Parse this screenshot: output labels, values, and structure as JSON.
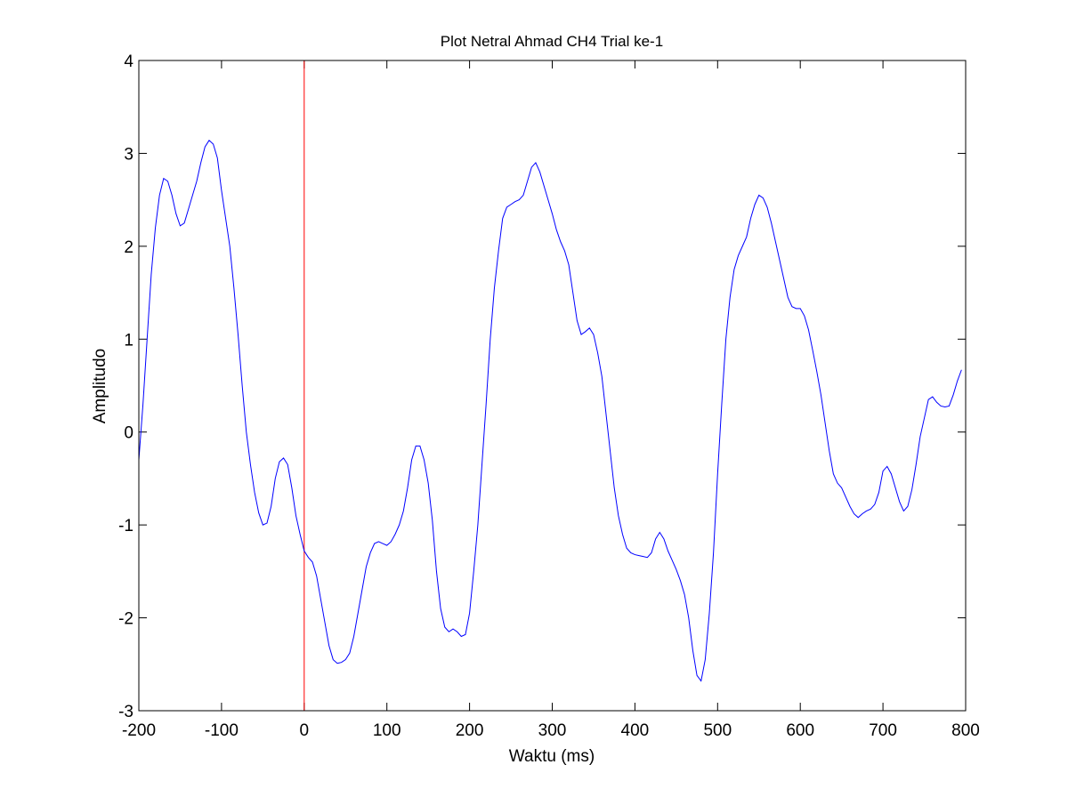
{
  "chart_data": {
    "type": "line",
    "title": "Plot Netral Ahmad CH4 Trial ke-1",
    "xlabel": "Waktu (ms)",
    "ylabel": "Amplitudo",
    "xlim": [
      -200,
      800
    ],
    "ylim": [
      -3,
      4
    ],
    "xticks": [
      -200,
      -100,
      0,
      100,
      200,
      300,
      400,
      500,
      600,
      700,
      800
    ],
    "yticks": [
      -3,
      -2,
      -1,
      0,
      1,
      2,
      3,
      4
    ],
    "grid": false,
    "legend": "none",
    "colors": {
      "signal": "#0000ff",
      "stimulus_marker": "#ff0000",
      "axes": "#000000"
    },
    "stimulus_marker_x": 0,
    "series": [
      {
        "x": [
          -200,
          -195,
          -190,
          -185,
          -180,
          -175,
          -170,
          -165,
          -160,
          -155,
          -150,
          -145,
          -140,
          -135,
          -130,
          -125,
          -120,
          -115,
          -110,
          -105,
          -100,
          -95,
          -90,
          -85,
          -80,
          -75,
          -70,
          -65,
          -60,
          -55,
          -50,
          -45,
          -40,
          -35,
          -30,
          -25,
          -20,
          -15,
          -10,
          -5,
          0,
          5,
          10,
          15,
          20,
          25,
          30,
          35,
          40,
          45,
          50,
          55,
          60,
          65,
          70,
          75,
          80,
          85,
          90,
          95,
          100,
          105,
          110,
          115,
          120,
          125,
          130,
          135,
          140,
          145,
          150,
          155,
          160,
          165,
          170,
          175,
          180,
          185,
          190,
          195,
          200,
          205,
          210,
          215,
          220,
          225,
          230,
          235,
          240,
          245,
          250,
          255,
          260,
          265,
          270,
          275,
          280,
          285,
          290,
          295,
          300,
          305,
          310,
          315,
          320,
          325,
          330,
          335,
          340,
          345,
          350,
          355,
          360,
          365,
          370,
          375,
          380,
          385,
          390,
          395,
          400,
          405,
          410,
          415,
          420,
          425,
          430,
          435,
          440,
          445,
          450,
          455,
          460,
          465,
          470,
          475,
          480,
          485,
          490,
          495,
          500,
          505,
          510,
          515,
          520,
          525,
          530,
          535,
          540,
          545,
          550,
          555,
          560,
          565,
          570,
          575,
          580,
          585,
          590,
          595,
          600,
          605,
          610,
          615,
          620,
          625,
          630,
          635,
          640,
          645,
          650,
          655,
          660,
          665,
          670,
          675,
          680,
          685,
          690,
          695,
          700,
          705,
          710,
          715,
          720,
          725,
          730,
          735,
          740,
          745,
          750,
          755,
          760,
          765,
          770,
          775,
          780,
          785,
          790,
          795
        ],
        "values": [
          -0.3,
          0.3,
          1.0,
          1.7,
          2.2,
          2.55,
          2.73,
          2.7,
          2.55,
          2.35,
          2.22,
          2.25,
          2.4,
          2.55,
          2.7,
          2.9,
          3.07,
          3.14,
          3.1,
          2.95,
          2.6,
          2.3,
          2.0,
          1.55,
          1.05,
          0.5,
          0.0,
          -0.35,
          -0.65,
          -0.87,
          -1.0,
          -0.98,
          -0.8,
          -0.5,
          -0.32,
          -0.28,
          -0.35,
          -0.6,
          -0.9,
          -1.1,
          -1.28,
          -1.35,
          -1.4,
          -1.55,
          -1.8,
          -2.05,
          -2.3,
          -2.45,
          -2.49,
          -2.48,
          -2.45,
          -2.38,
          -2.2,
          -1.95,
          -1.7,
          -1.45,
          -1.3,
          -1.2,
          -1.18,
          -1.2,
          -1.22,
          -1.18,
          -1.1,
          -1.0,
          -0.85,
          -0.6,
          -0.3,
          -0.15,
          -0.15,
          -0.3,
          -0.55,
          -0.95,
          -1.5,
          -1.9,
          -2.1,
          -2.15,
          -2.12,
          -2.15,
          -2.2,
          -2.18,
          -1.95,
          -1.5,
          -1.0,
          -0.35,
          0.3,
          1.0,
          1.55,
          1.95,
          2.3,
          2.42,
          2.45,
          2.48,
          2.5,
          2.55,
          2.7,
          2.85,
          2.9,
          2.8,
          2.65,
          2.5,
          2.35,
          2.18,
          2.05,
          1.95,
          1.8,
          1.5,
          1.2,
          1.05,
          1.08,
          1.12,
          1.05,
          0.85,
          0.6,
          0.2,
          -0.2,
          -0.6,
          -0.9,
          -1.1,
          -1.25,
          -1.3,
          -1.32,
          -1.33,
          -1.34,
          -1.35,
          -1.3,
          -1.15,
          -1.08,
          -1.15,
          -1.28,
          -1.38,
          -1.48,
          -1.6,
          -1.75,
          -2.0,
          -2.35,
          -2.62,
          -2.68,
          -2.45,
          -1.95,
          -1.3,
          -0.45,
          0.3,
          1.0,
          1.45,
          1.75,
          1.9,
          2.0,
          2.1,
          2.3,
          2.45,
          2.55,
          2.52,
          2.42,
          2.25,
          2.05,
          1.85,
          1.65,
          1.45,
          1.35,
          1.33,
          1.33,
          1.25,
          1.1,
          0.88,
          0.65,
          0.4,
          0.1,
          -0.2,
          -0.45,
          -0.55,
          -0.6,
          -0.7,
          -0.8,
          -0.88,
          -0.92,
          -0.88,
          -0.85,
          -0.83,
          -0.78,
          -0.65,
          -0.42,
          -0.37,
          -0.45,
          -0.6,
          -0.75,
          -0.85,
          -0.8,
          -0.62,
          -0.35,
          -0.05,
          0.15,
          0.35,
          0.38,
          0.32,
          0.28,
          0.27,
          0.28,
          0.4,
          0.55,
          0.67
        ]
      }
    ]
  }
}
